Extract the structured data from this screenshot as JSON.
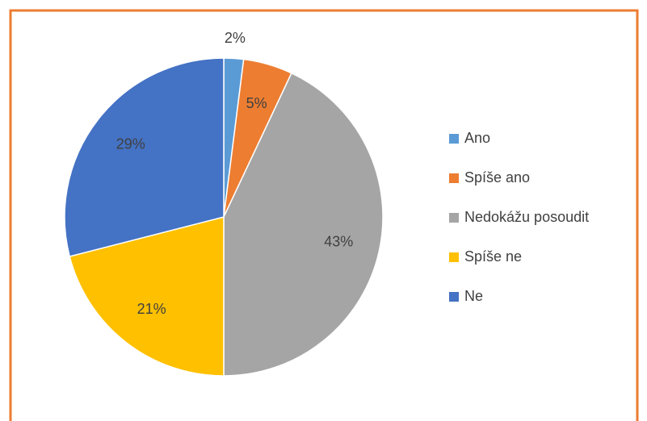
{
  "chart_data": {
    "type": "pie",
    "categories": [
      "Ano",
      "Spíše ano",
      "Nedokážu posoudit",
      "Spíše ne",
      "Ne"
    ],
    "values": [
      2,
      5,
      43,
      21,
      29
    ],
    "value_labels": [
      "2%",
      "5%",
      "43%",
      "21%",
      "29%"
    ],
    "colors": [
      "#5b9bd5",
      "#ed7d31",
      "#a5a5a5",
      "#ffc000",
      "#4472c4"
    ],
    "legend": "right"
  }
}
